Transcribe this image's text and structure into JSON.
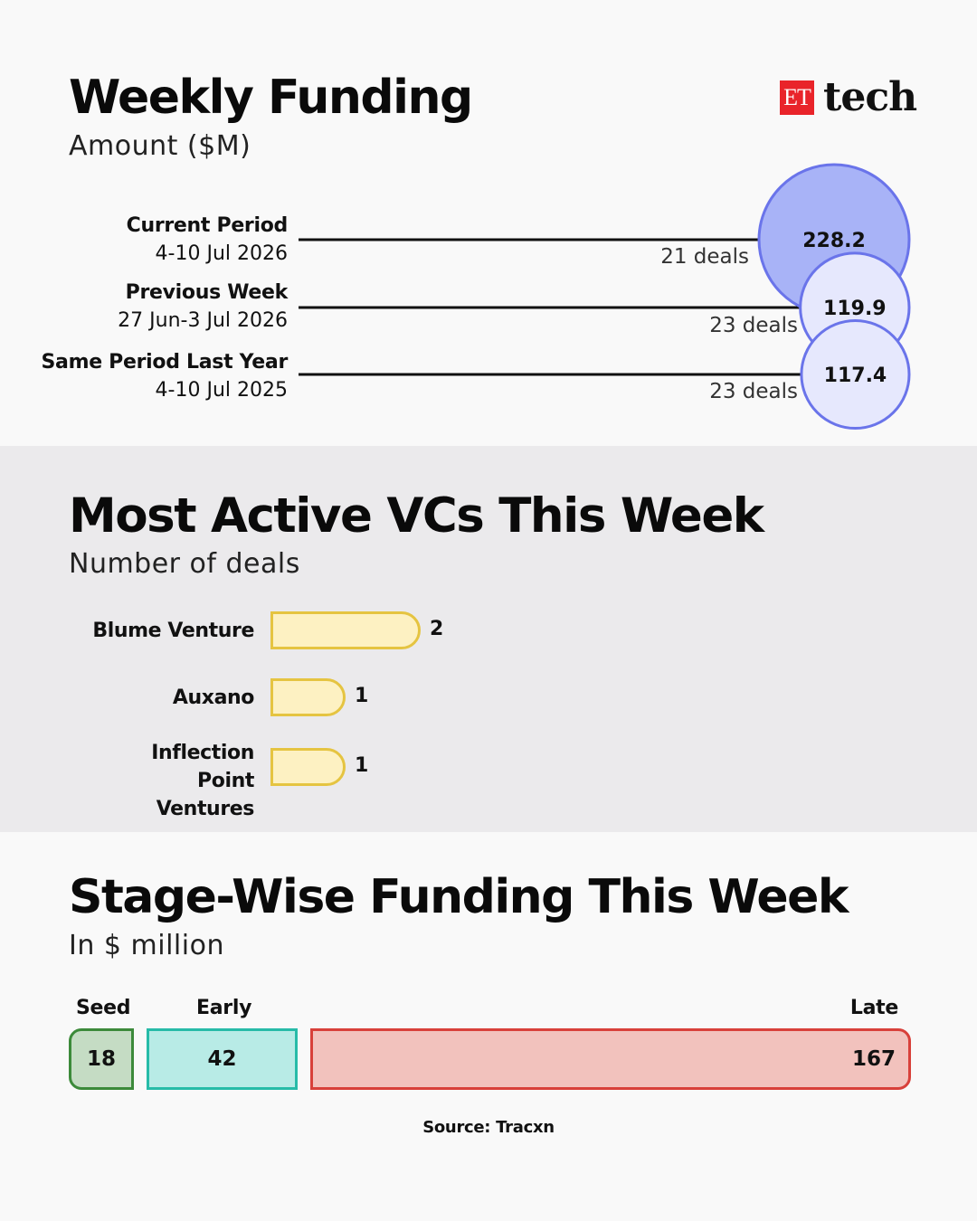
{
  "brand": {
    "logo_et": "ET",
    "logo_tech": "tech",
    "accent": "#e9242a"
  },
  "sections": {
    "weekly": {
      "title": "Weekly Funding",
      "subtitle": "Amount ($M)"
    },
    "vcs": {
      "title": "Most Active VCs This Week",
      "subtitle": "Number of deals"
    },
    "stage": {
      "title": "Stage-Wise Funding This Week",
      "subtitle": "In $ million"
    }
  },
  "source": "Source: Tracxn",
  "chart_data": [
    {
      "type": "bubble",
      "title": "Weekly Funding",
      "subtitle": "Amount ($M)",
      "rows": [
        {
          "label": "Current Period",
          "dates": "4-10 Jul 2026",
          "value": 228.2,
          "value_text": "228.2",
          "deals_text": "21 deals",
          "deals": 21,
          "color": "#a8b3f7"
        },
        {
          "label": "Previous Week",
          "dates": "27 Jun-3 Jul 2026",
          "value": 119.9,
          "value_text": "119.9",
          "deals_text": "23 deals",
          "deals": 23,
          "color": "#e6e8fd"
        },
        {
          "label": "Same Period Last Year",
          "dates": "4-10 Jul 2025",
          "value": 117.4,
          "value_text": "117.4",
          "deals_text": "23 deals",
          "deals": 23,
          "color": "#e6e8fd"
        }
      ],
      "stroke_color": "#6a74ea"
    },
    {
      "type": "bar",
      "title": "Most Active VCs This Week",
      "subtitle": "Number of deals",
      "categories": [
        "Blume Venture",
        "Auxano",
        "Inflection Point Ventures"
      ],
      "values": [
        2,
        1,
        1
      ],
      "value_labels": [
        "2",
        "1",
        "1"
      ],
      "fill": "#fdf1c2",
      "stroke": "#e5c441"
    },
    {
      "type": "bar",
      "title": "Stage-Wise Funding This Week",
      "subtitle": "In $ million",
      "categories": [
        "Seed",
        "Early",
        "Late"
      ],
      "values": [
        18,
        42,
        167
      ],
      "value_labels": [
        "18",
        "42",
        "167"
      ],
      "colors": [
        {
          "fill": "#c5dcc4",
          "stroke": "#3c8a3a"
        },
        {
          "fill": "#b8ebe6",
          "stroke": "#27bba8"
        },
        {
          "fill": "#f2c2bd",
          "stroke": "#d8403a"
        }
      ]
    }
  ]
}
